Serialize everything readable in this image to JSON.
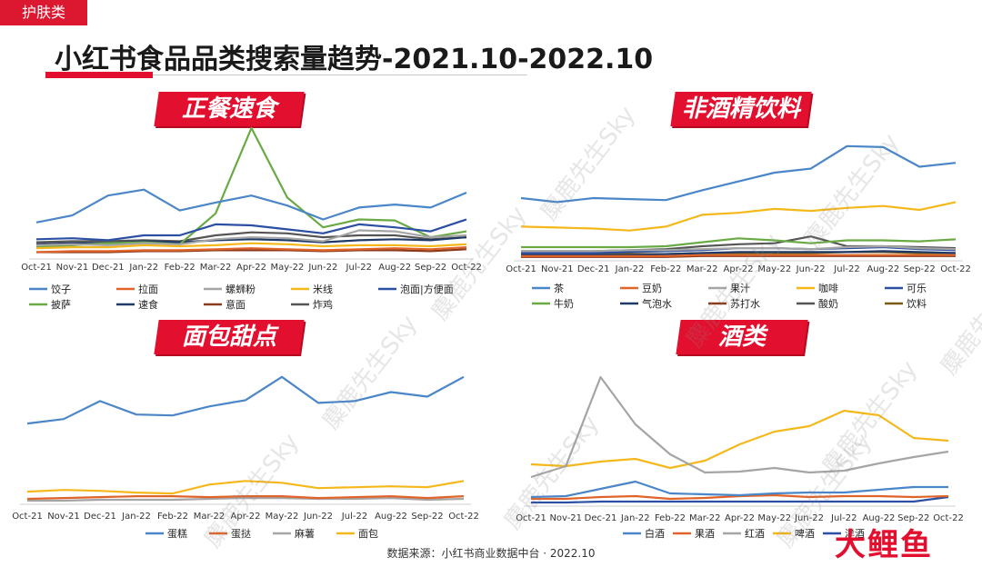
{
  "corner_label": "护肤类",
  "main_title": "小红书食品品类搜索量趋势-2021.10-2022.10",
  "footer": "数据来源：小红书商业数据中台 · 2022.10",
  "watermark": "麋鹿先生Sky",
  "logo": "大鲤鱼",
  "colors": {
    "accent": "#e30f2e"
  },
  "months": [
    "Oct-21",
    "Nov-21",
    "Dec-21",
    "Jan-22",
    "Feb-22",
    "Mar-22",
    "Apr-22",
    "May-22",
    "Jun-22",
    "Jul-22",
    "Aug-22",
    "Sep-22",
    "Oct-22"
  ],
  "chart_data": [
    {
      "id": "meal",
      "type": "line",
      "title": "正餐速食",
      "ylim": [
        0,
        140
      ],
      "series": [
        {
          "name": "饺子",
          "color": "#4a86c8",
          "values": [
            35,
            42,
            62,
            68,
            47,
            55,
            62,
            52,
            38,
            50,
            53,
            50,
            65
          ]
        },
        {
          "name": "拉面",
          "color": "#e0642a",
          "values": [
            5,
            6,
            6,
            7,
            7,
            8,
            9,
            8,
            7,
            8,
            9,
            8,
            10
          ]
        },
        {
          "name": "螺蛳粉",
          "color": "#a5a5a5",
          "values": [
            12,
            13,
            12,
            14,
            13,
            18,
            20,
            19,
            16,
            27,
            26,
            20,
            22
          ]
        },
        {
          "name": "米线",
          "color": "#f5b81b",
          "values": [
            9,
            10,
            10,
            12,
            11,
            12,
            14,
            13,
            11,
            12,
            12,
            11,
            13
          ]
        },
        {
          "name": "泡面|方便面",
          "color": "#2b4fa2",
          "values": [
            18,
            19,
            17,
            22,
            22,
            33,
            32,
            28,
            24,
            33,
            30,
            26,
            38
          ]
        },
        {
          "name": "披萨",
          "color": "#6aaa45",
          "values": [
            10,
            12,
            14,
            15,
            13,
            44,
            130,
            60,
            30,
            38,
            37,
            20,
            26
          ]
        },
        {
          "name": "速食",
          "color": "#1f3a66",
          "values": [
            13,
            14,
            14,
            16,
            15,
            17,
            18,
            17,
            15,
            17,
            18,
            17,
            20
          ]
        },
        {
          "name": "意面",
          "color": "#8b3a1a",
          "values": [
            5,
            5,
            5,
            6,
            6,
            7,
            7,
            7,
            6,
            7,
            7,
            6,
            8
          ]
        },
        {
          "name": "炸鸡",
          "color": "#555555",
          "values": [
            15,
            16,
            16,
            17,
            16,
            22,
            25,
            24,
            20,
            22,
            22,
            18,
            20
          ]
        }
      ]
    },
    {
      "id": "drink",
      "type": "line",
      "title": "非酒精饮料",
      "ylim": [
        0,
        125
      ],
      "series": [
        {
          "name": "茶",
          "color": "#4a86c8",
          "values": [
            62,
            58,
            62,
            61,
            60,
            70,
            79,
            88,
            92,
            115,
            114,
            94,
            98
          ]
        },
        {
          "name": "豆奶",
          "color": "#e0642a",
          "values": [
            3,
            3,
            3,
            3,
            3,
            4,
            4,
            4,
            4,
            4,
            4,
            4,
            4
          ]
        },
        {
          "name": "果汁",
          "color": "#a5a5a5",
          "values": [
            8,
            8,
            8,
            9,
            9,
            10,
            11,
            11,
            10,
            12,
            13,
            11,
            10
          ]
        },
        {
          "name": "咖啡",
          "color": "#f5b81b",
          "values": [
            33,
            32,
            31,
            29,
            33,
            45,
            47,
            51,
            49,
            52,
            54,
            50,
            58
          ]
        },
        {
          "name": "可乐",
          "color": "#2b4fa2",
          "values": [
            6,
            6,
            6,
            7,
            8,
            9,
            11,
            11,
            10,
            11,
            12,
            10,
            9
          ]
        },
        {
          "name": "牛奶",
          "color": "#6aaa45",
          "values": [
            12,
            12,
            12,
            12,
            13,
            17,
            21,
            19,
            16,
            19,
            19,
            18,
            20
          ]
        },
        {
          "name": "气泡水",
          "color": "#1f3a66",
          "values": [
            4,
            4,
            4,
            4,
            5,
            6,
            7,
            7,
            7,
            7,
            8,
            7,
            6
          ]
        },
        {
          "name": "苏打水",
          "color": "#8b3a1a",
          "values": [
            2,
            2,
            2,
            2,
            2,
            3,
            3,
            3,
            3,
            3,
            3,
            3,
            3
          ]
        },
        {
          "name": "酸奶",
          "color": "#555555",
          "values": [
            8,
            8,
            8,
            9,
            10,
            13,
            15,
            16,
            23,
            13,
            13,
            12,
            11
          ]
        },
        {
          "name": "饮料",
          "color": "#7a5a10",
          "values": [
            5,
            5,
            5,
            5,
            5,
            6,
            6,
            6,
            6,
            7,
            7,
            6,
            6
          ]
        }
      ]
    },
    {
      "id": "bread",
      "type": "line",
      "title": "面包甜点",
      "ylim": [
        0,
        160
      ],
      "series": [
        {
          "name": "蛋糕",
          "color": "#4a86c8",
          "values": [
            88,
            93,
            113,
            98,
            97,
            107,
            114,
            140,
            111,
            113,
            123,
            118,
            140
          ]
        },
        {
          "name": "蛋挞",
          "color": "#e0642a",
          "values": [
            4,
            5,
            6,
            7,
            7,
            6,
            7,
            7,
            5,
            6,
            7,
            5,
            7
          ]
        },
        {
          "name": "麻薯",
          "color": "#a5a5a5",
          "values": [
            2,
            2,
            3,
            3,
            3,
            4,
            5,
            5,
            4,
            4,
            5,
            3,
            4
          ]
        },
        {
          "name": "面包",
          "color": "#f5b81b",
          "values": [
            12,
            14,
            13,
            11,
            10,
            20,
            24,
            22,
            16,
            17,
            18,
            17,
            24
          ]
        }
      ]
    },
    {
      "id": "alcohol",
      "type": "line",
      "title": "酒类",
      "ylim": [
        0,
        150
      ],
      "series": [
        {
          "name": "白酒",
          "color": "#4a86c8",
          "values": [
            8,
            9,
            17,
            25,
            12,
            11,
            10,
            12,
            13,
            13,
            16,
            19,
            19
          ]
        },
        {
          "name": "果酒",
          "color": "#e0642a",
          "values": [
            6,
            6,
            8,
            9,
            6,
            7,
            9,
            10,
            8,
            9,
            9,
            8,
            9
          ]
        },
        {
          "name": "红酒",
          "color": "#a5a5a5",
          "values": [
            30,
            42,
            140,
            88,
            55,
            35,
            36,
            40,
            35,
            37,
            45,
            52,
            58
          ]
        },
        {
          "name": "啤酒",
          "color": "#f5b81b",
          "values": [
            44,
            42,
            47,
            50,
            40,
            48,
            66,
            80,
            86,
            103,
            98,
            73,
            70
          ]
        },
        {
          "name": "洋酒",
          "color": "#2b4fa2",
          "values": [
            2,
            2,
            3,
            3,
            3,
            3,
            3,
            3,
            3,
            3,
            3,
            3,
            8
          ]
        }
      ]
    }
  ]
}
